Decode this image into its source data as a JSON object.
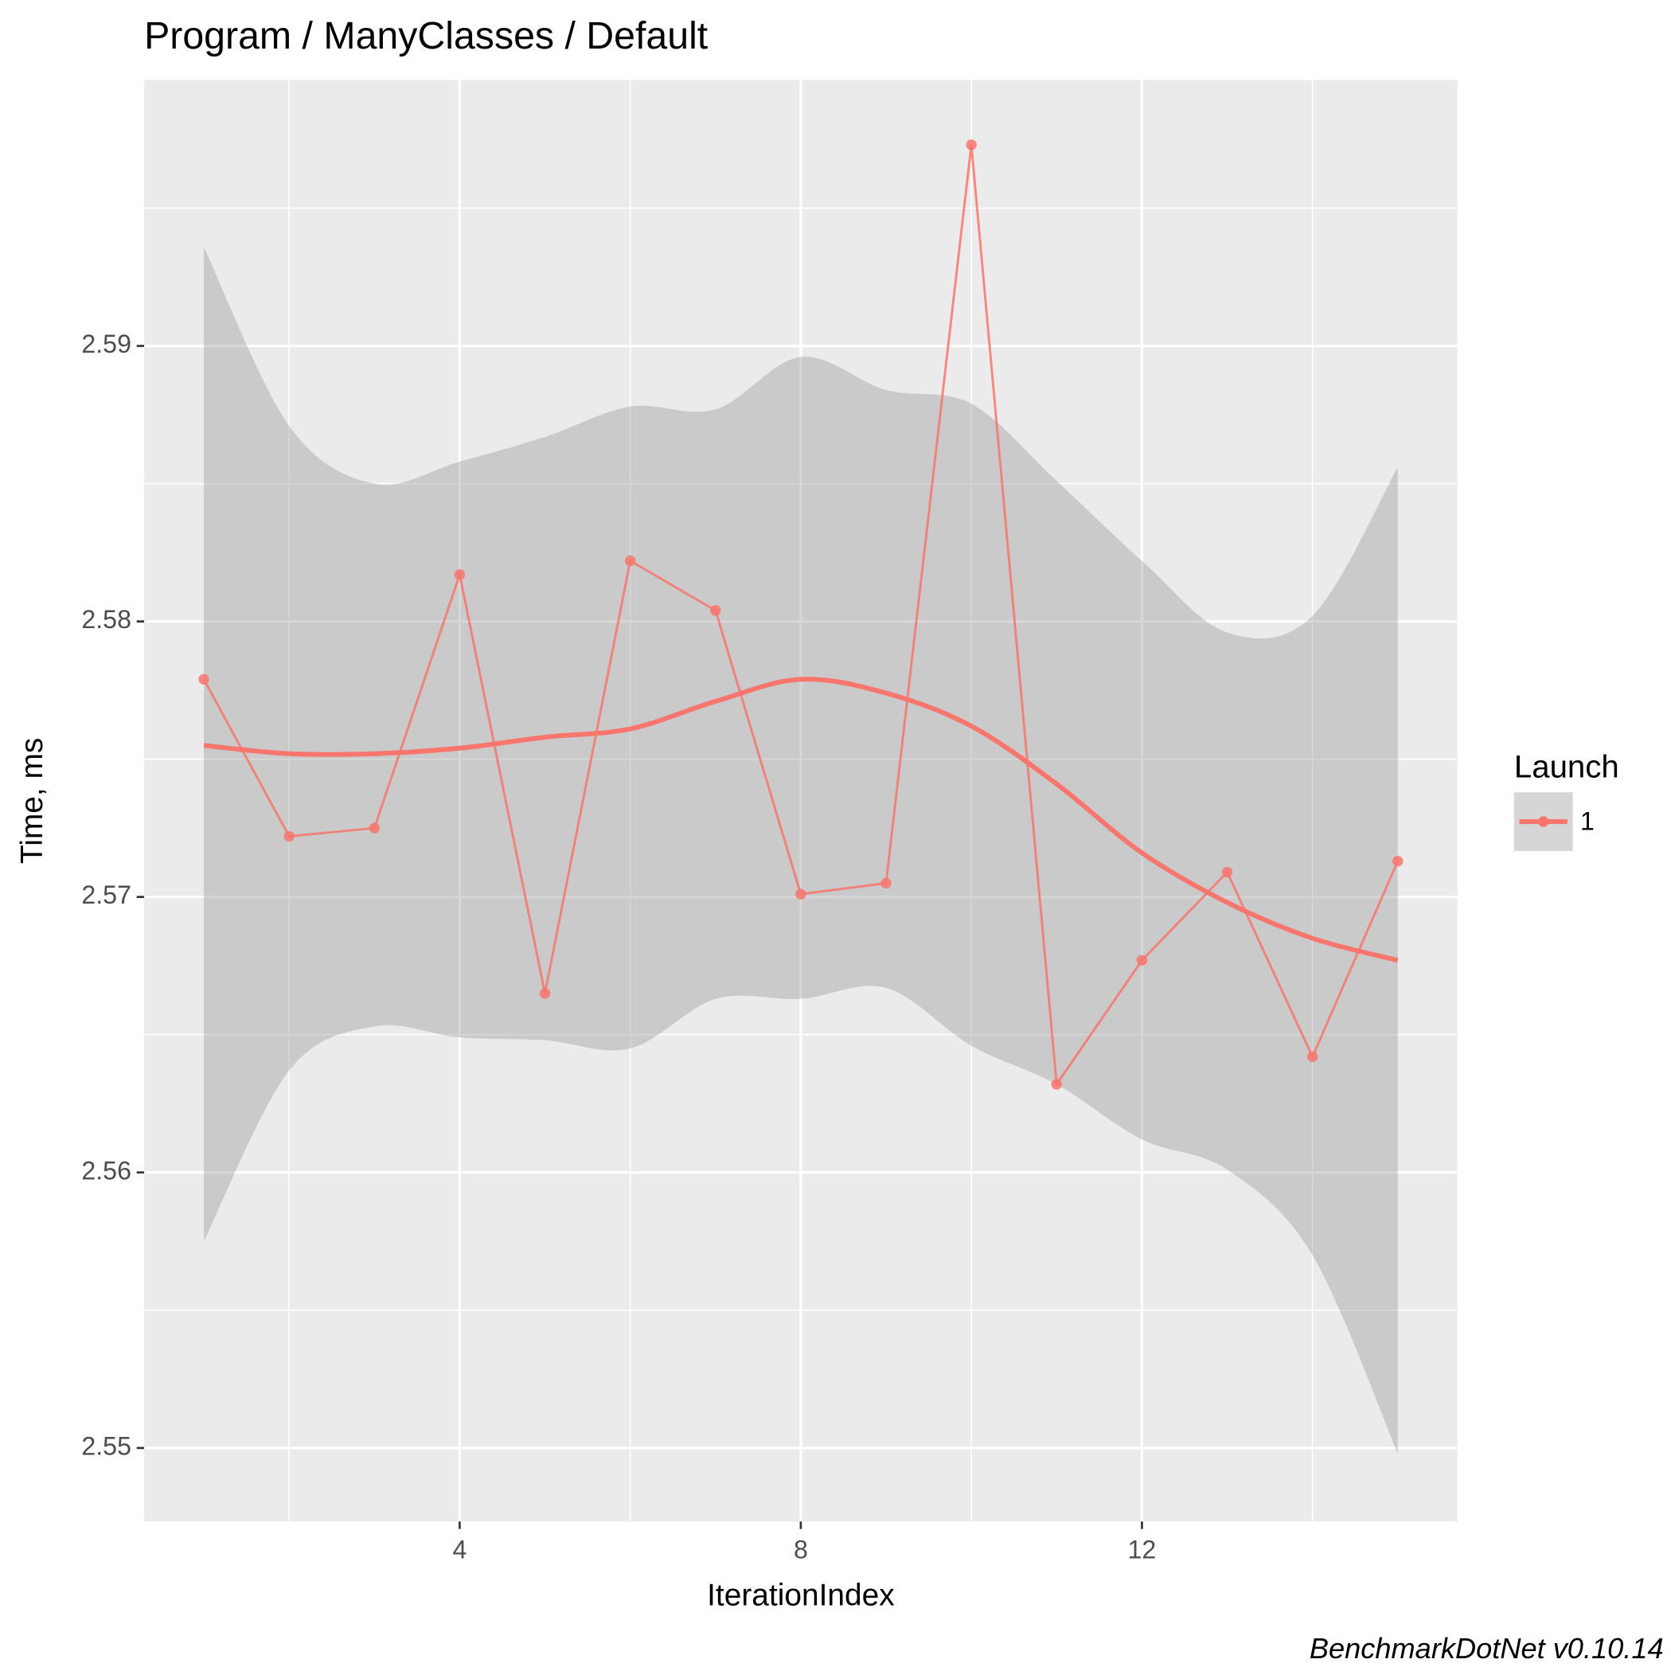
{
  "chart_data": {
    "type": "line",
    "title": "Program / ManyClasses / Default",
    "x_label": "IterationIndex",
    "y_label": "Time, ms",
    "caption": "BenchmarkDotNet v0.10.14",
    "legend_title": "Launch",
    "legend_position": "right",
    "grid": true,
    "x": [
      1,
      2,
      3,
      4,
      5,
      6,
      7,
      8,
      9,
      10,
      11,
      12,
      13,
      14,
      15
    ],
    "series": [
      {
        "name": "1",
        "color": "#F8766D",
        "values": [
          2.5779,
          2.5722,
          2.5725,
          2.5817,
          2.5665,
          2.5822,
          2.5804,
          2.5701,
          2.5705,
          2.5973,
          2.5632,
          2.5677,
          2.5709,
          2.5642,
          2.5713
        ],
        "smooth": [
          2.5755,
          2.5752,
          2.5752,
          2.5754,
          2.5758,
          2.5761,
          2.5771,
          2.5779,
          2.5774,
          2.5762,
          2.5741,
          2.5716,
          2.5698,
          2.5685,
          2.5677
        ],
        "lower": [
          2.5575,
          2.5637,
          2.5653,
          2.5649,
          2.5648,
          2.5645,
          2.5663,
          2.5663,
          2.5667,
          2.5646,
          2.5632,
          2.5612,
          2.5601,
          2.557,
          2.5498
        ],
        "upper": [
          2.5936,
          2.5871,
          2.585,
          2.5858,
          2.5867,
          2.5878,
          2.5877,
          2.5896,
          2.5884,
          2.5879,
          2.5851,
          2.5822,
          2.5796,
          2.5802,
          2.5856
        ]
      }
    ],
    "ribbon_color": "#999999",
    "xlim": [
      0.3,
      15.7
    ],
    "xticks": [
      4,
      8,
      12
    ],
    "xminor_ticks": [
      2,
      6,
      10,
      14
    ],
    "ylim": [
      2.54733,
      2.59965
    ],
    "yticks": [
      2.55,
      2.56,
      2.57,
      2.58,
      2.59
    ],
    "yminor_ticks": [
      2.555,
      2.565,
      2.575,
      2.585,
      2.595
    ]
  }
}
